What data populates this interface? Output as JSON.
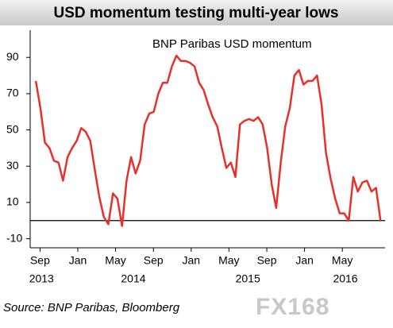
{
  "chart_data": {
    "type": "line",
    "title": "USD momentum testing multi-year lows",
    "legend_label": "BNP Paribas USD momentum",
    "source": "Source:  BNP Paribas, Bloomberg",
    "watermark": "FX168",
    "xlim": [
      2013.58,
      2016.71
    ],
    "ylim": [
      -15,
      105
    ],
    "yticks": [
      -10,
      10,
      30,
      50,
      70,
      90
    ],
    "hline": 0,
    "xticks": [
      {
        "value": 2013.667,
        "label": "Sep"
      },
      {
        "value": 2014.0,
        "label": "Jan"
      },
      {
        "value": 2014.333,
        "label": "May"
      },
      {
        "value": 2014.667,
        "label": "Sep"
      },
      {
        "value": 2015.0,
        "label": "Jan"
      },
      {
        "value": 2015.333,
        "label": "May"
      },
      {
        "value": 2015.667,
        "label": "Sep"
      },
      {
        "value": 2016.0,
        "label": "Jan"
      },
      {
        "value": 2016.333,
        "label": "May"
      }
    ],
    "year_labels": [
      {
        "value": 2013.68,
        "label": "2013"
      },
      {
        "value": 2014.49,
        "label": "2014"
      },
      {
        "value": 2015.5,
        "label": "2015"
      },
      {
        "value": 2016.36,
        "label": "2016"
      }
    ],
    "series": [
      {
        "name": "BNP Paribas USD momentum",
        "color": "#e8302a",
        "x": [
          2013.63,
          2013.67,
          2013.71,
          2013.75,
          2013.79,
          2013.83,
          2013.87,
          2013.91,
          2013.95,
          2013.99,
          2014.03,
          2014.07,
          2014.11,
          2014.15,
          2014.19,
          2014.23,
          2014.27,
          2014.31,
          2014.35,
          2014.39,
          2014.43,
          2014.47,
          2014.51,
          2014.55,
          2014.59,
          2014.63,
          2014.67,
          2014.71,
          2014.75,
          2014.79,
          2014.83,
          2014.87,
          2014.91,
          2014.95,
          2014.99,
          2015.03,
          2015.07,
          2015.11,
          2015.15,
          2015.19,
          2015.23,
          2015.27,
          2015.31,
          2015.35,
          2015.39,
          2015.43,
          2015.47,
          2015.51,
          2015.55,
          2015.59,
          2015.63,
          2015.67,
          2015.71,
          2015.75,
          2015.79,
          2015.83,
          2015.87,
          2015.91,
          2015.95,
          2015.99,
          2016.03,
          2016.07,
          2016.11,
          2016.15,
          2016.19,
          2016.23,
          2016.27,
          2016.31,
          2016.35,
          2016.39,
          2016.43,
          2016.47,
          2016.51,
          2016.55,
          2016.59,
          2016.63,
          2016.67
        ],
        "values": [
          77,
          62,
          43,
          40,
          33,
          32,
          22,
          35,
          40,
          44,
          51,
          49,
          44,
          28,
          13,
          2,
          -2,
          15,
          12,
          -3,
          22,
          35,
          26,
          33,
          53,
          59,
          60,
          70,
          76,
          76,
          85,
          91,
          88,
          88,
          87,
          85,
          76,
          72,
          64,
          57,
          52,
          40,
          29,
          32,
          24,
          53,
          55,
          56,
          55,
          57,
          53,
          40,
          20,
          7,
          32,
          52,
          62,
          80,
          83,
          75,
          77,
          77,
          80,
          64,
          37,
          23,
          12,
          4,
          4,
          0,
          24,
          16,
          21,
          22,
          16,
          18,
          0
        ]
      }
    ]
  }
}
